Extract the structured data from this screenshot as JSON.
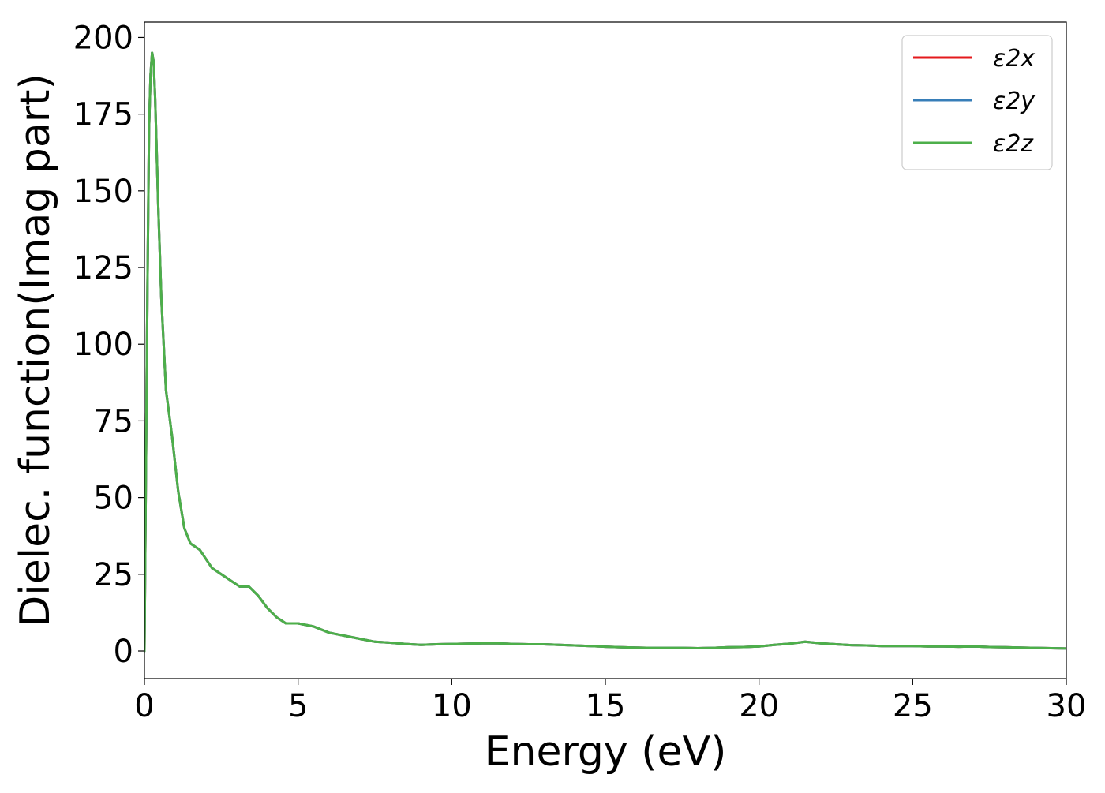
{
  "chart_data": {
    "type": "line",
    "title": "",
    "xlabel": "Energy (eV)",
    "ylabel": "Dielec. function(Imag part)",
    "xlim": [
      0,
      30
    ],
    "ylim": [
      -9,
      205
    ],
    "xticks": [
      0,
      5,
      10,
      15,
      20,
      25,
      30
    ],
    "yticks": [
      0,
      25,
      50,
      75,
      100,
      125,
      150,
      175,
      200
    ],
    "grid": false,
    "legend_position": "top-right",
    "series": [
      {
        "name": "ε2x",
        "color": "#e41a1c",
        "x": [
          0,
          0.05,
          0.1,
          0.15,
          0.2,
          0.25,
          0.3,
          0.35,
          0.45,
          0.55,
          0.7,
          0.9,
          1.1,
          1.3,
          1.5,
          1.8,
          2.0,
          2.2,
          2.5,
          2.8,
          3.1,
          3.4,
          3.7,
          4.0,
          4.3,
          4.6,
          5.0,
          5.5,
          6.0,
          6.5,
          7.0,
          7.5,
          8.0,
          8.5,
          9.0,
          9.5,
          10.0,
          10.5,
          11.0,
          11.5,
          12.0,
          12.5,
          13.0,
          13.5,
          14.0,
          14.5,
          15.0,
          15.5,
          16.0,
          16.5,
          17.0,
          17.5,
          18.0,
          18.5,
          19.0,
          19.5,
          20.0,
          20.5,
          21.0,
          21.5,
          22.0,
          22.5,
          23.0,
          23.5,
          24.0,
          24.5,
          25.0,
          25.5,
          26.0,
          26.5,
          27.0,
          27.5,
          28.0,
          28.5,
          29.0,
          29.5,
          30.0
        ],
        "y": [
          0,
          60,
          120,
          170,
          188,
          195,
          192,
          180,
          145,
          115,
          85,
          70,
          52,
          40,
          35,
          33,
          30,
          27,
          25,
          23,
          21,
          21,
          18,
          14,
          11,
          9,
          9,
          8,
          6,
          5,
          4,
          3,
          2.7,
          2.3,
          2,
          2.2,
          2.3,
          2.4,
          2.5,
          2.5,
          2.3,
          2.2,
          2.2,
          2,
          1.8,
          1.6,
          1.4,
          1.2,
          1.1,
          1,
          1,
          1,
          0.9,
          1,
          1.2,
          1.3,
          1.5,
          2,
          2.4,
          3,
          2.5,
          2.2,
          1.9,
          1.8,
          1.6,
          1.6,
          1.6,
          1.5,
          1.5,
          1.4,
          1.5,
          1.3,
          1.2,
          1.1,
          1.0,
          0.9,
          0.8
        ]
      },
      {
        "name": "ε2y",
        "color": "#377eb8",
        "x": [
          0,
          0.05,
          0.1,
          0.15,
          0.2,
          0.25,
          0.3,
          0.35,
          0.45,
          0.55,
          0.7,
          0.9,
          1.1,
          1.3,
          1.5,
          1.8,
          2.0,
          2.2,
          2.5,
          2.8,
          3.1,
          3.4,
          3.7,
          4.0,
          4.3,
          4.6,
          5.0,
          5.5,
          6.0,
          6.5,
          7.0,
          7.5,
          8.0,
          8.5,
          9.0,
          9.5,
          10.0,
          10.5,
          11.0,
          11.5,
          12.0,
          12.5,
          13.0,
          13.5,
          14.0,
          14.5,
          15.0,
          15.5,
          16.0,
          16.5,
          17.0,
          17.5,
          18.0,
          18.5,
          19.0,
          19.5,
          20.0,
          20.5,
          21.0,
          21.5,
          22.0,
          22.5,
          23.0,
          23.5,
          24.0,
          24.5,
          25.0,
          25.5,
          26.0,
          26.5,
          27.0,
          27.5,
          28.0,
          28.5,
          29.0,
          29.5,
          30.0
        ],
        "y": [
          0,
          60,
          120,
          170,
          188,
          195,
          192,
          180,
          145,
          115,
          85,
          70,
          52,
          40,
          35,
          33,
          30,
          27,
          25,
          23,
          21,
          21,
          18,
          14,
          11,
          9,
          9,
          8,
          6,
          5,
          4,
          3,
          2.7,
          2.3,
          2,
          2.2,
          2.3,
          2.4,
          2.5,
          2.5,
          2.3,
          2.2,
          2.2,
          2,
          1.8,
          1.6,
          1.4,
          1.2,
          1.1,
          1,
          1,
          1,
          0.9,
          1,
          1.2,
          1.3,
          1.5,
          2,
          2.4,
          3,
          2.5,
          2.2,
          1.9,
          1.8,
          1.6,
          1.6,
          1.6,
          1.5,
          1.5,
          1.4,
          1.5,
          1.3,
          1.2,
          1.1,
          1.0,
          0.9,
          0.8
        ]
      },
      {
        "name": "ε2z",
        "color": "#4daf4a",
        "x": [
          0,
          0.05,
          0.1,
          0.15,
          0.2,
          0.25,
          0.3,
          0.35,
          0.45,
          0.55,
          0.7,
          0.9,
          1.1,
          1.3,
          1.5,
          1.8,
          2.0,
          2.2,
          2.5,
          2.8,
          3.1,
          3.4,
          3.7,
          4.0,
          4.3,
          4.6,
          5.0,
          5.5,
          6.0,
          6.5,
          7.0,
          7.5,
          8.0,
          8.5,
          9.0,
          9.5,
          10.0,
          10.5,
          11.0,
          11.5,
          12.0,
          12.5,
          13.0,
          13.5,
          14.0,
          14.5,
          15.0,
          15.5,
          16.0,
          16.5,
          17.0,
          17.5,
          18.0,
          18.5,
          19.0,
          19.5,
          20.0,
          20.5,
          21.0,
          21.5,
          22.0,
          22.5,
          23.0,
          23.5,
          24.0,
          24.5,
          25.0,
          25.5,
          26.0,
          26.5,
          27.0,
          27.5,
          28.0,
          28.5,
          29.0,
          29.5,
          30.0
        ],
        "y": [
          0,
          60,
          120,
          170,
          188,
          195,
          192,
          180,
          145,
          115,
          85,
          70,
          52,
          40,
          35,
          33,
          30,
          27,
          25,
          23,
          21,
          21,
          18,
          14,
          11,
          9,
          9,
          8,
          6,
          5,
          4,
          3,
          2.7,
          2.3,
          2,
          2.2,
          2.3,
          2.4,
          2.5,
          2.5,
          2.3,
          2.2,
          2.2,
          2,
          1.8,
          1.6,
          1.4,
          1.2,
          1.1,
          1,
          1,
          1,
          0.9,
          1,
          1.2,
          1.3,
          1.5,
          2,
          2.4,
          3,
          2.5,
          2.2,
          1.9,
          1.8,
          1.6,
          1.6,
          1.6,
          1.5,
          1.5,
          1.4,
          1.5,
          1.3,
          1.2,
          1.1,
          1.0,
          0.9,
          0.8
        ]
      }
    ]
  }
}
